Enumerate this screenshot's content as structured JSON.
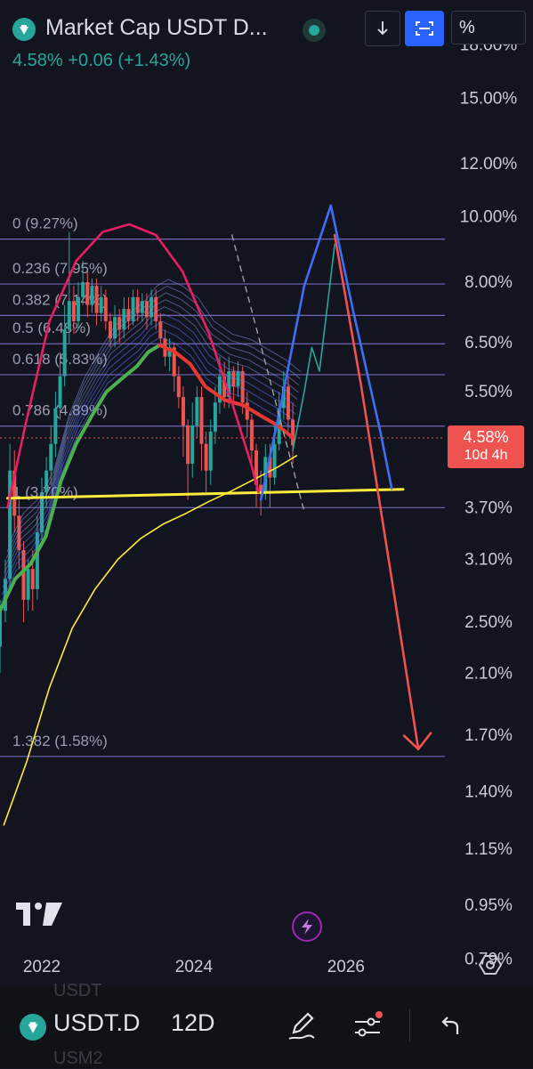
{
  "header": {
    "title": "Market Cap USDT D...",
    "change_text": "4.58%  +0.06 (+1.43%)",
    "scale_mode_label": "%"
  },
  "price_tag": {
    "value": "4.58%",
    "countdown": "10d 4h"
  },
  "chart_data": {
    "type": "line",
    "title": "Market Cap USDT D...",
    "y_scale": "log",
    "ylim": [
      0.72,
      21
    ],
    "xlim": [
      2021.45,
      2027.3
    ],
    "y_ticks": [
      "18.00%",
      "15.00%",
      "12.00%",
      "10.00%",
      "8.00%",
      "6.50%",
      "5.50%",
      "3.70%",
      "3.10%",
      "2.50%",
      "2.10%",
      "1.70%",
      "1.40%",
      "1.15%",
      "0.95%",
      "0.79%"
    ],
    "x_ticks": [
      {
        "label": "2022",
        "x": 2022.0
      },
      {
        "label": "2024",
        "x": 2024.0
      },
      {
        "label": "2026",
        "x": 2026.0
      }
    ],
    "last_price": 4.58,
    "fib_levels": [
      {
        "label": "0 (9.27%)",
        "value": 9.27
      },
      {
        "label": "0.236 (7.95%)",
        "value": 7.95
      },
      {
        "label": "0.382 (7.14%)",
        "value": 7.14
      },
      {
        "label": "0.5 (6.48%)",
        "value": 6.48
      },
      {
        "label": "0.618 (5.83%)",
        "value": 5.83
      },
      {
        "label": "0.786 (4.89%)",
        "value": 4.89
      },
      {
        "label": "1 (3.70%)",
        "value": 3.7
      },
      {
        "label": "1.382 (1.58%)",
        "value": 1.58
      }
    ],
    "series": [
      {
        "color": "#ffeb3b",
        "style": "thin",
        "points": [
          [
            2021.5,
            1.25
          ],
          [
            2021.8,
            1.55
          ],
          [
            2022.1,
            2.0
          ],
          [
            2022.4,
            2.45
          ],
          [
            2022.7,
            2.8
          ],
          [
            2023.0,
            3.1
          ],
          [
            2023.3,
            3.33
          ],
          [
            2023.6,
            3.5
          ],
          [
            2023.9,
            3.63
          ],
          [
            2024.2,
            3.78
          ],
          [
            2024.5,
            3.92
          ],
          [
            2024.8,
            4.08
          ],
          [
            2025.1,
            4.25
          ],
          [
            2025.35,
            4.42
          ]
        ]
      },
      {
        "color": "#4caf50",
        "style": "thick",
        "points": [
          [
            2021.45,
            2.6
          ],
          [
            2021.65,
            2.9
          ],
          [
            2021.85,
            3.05
          ],
          [
            2022.05,
            3.35
          ],
          [
            2022.25,
            4.05
          ],
          [
            2022.45,
            4.6
          ],
          [
            2022.65,
            5.05
          ],
          [
            2022.85,
            5.5
          ],
          [
            2023.05,
            5.75
          ],
          [
            2023.25,
            6.0
          ],
          [
            2023.4,
            6.3
          ],
          [
            2023.55,
            6.45
          ]
        ]
      },
      {
        "color": "#e53935",
        "style": "thick",
        "points": [
          [
            2023.55,
            6.45
          ],
          [
            2023.75,
            6.3
          ],
          [
            2023.95,
            6.05
          ],
          [
            2024.15,
            5.6
          ],
          [
            2024.4,
            5.35
          ],
          [
            2024.65,
            5.25
          ],
          [
            2024.9,
            5.05
          ],
          [
            2025.1,
            4.9
          ],
          [
            2025.3,
            4.7
          ]
        ]
      },
      {
        "color": "#26a69a",
        "style": "thin",
        "points": [
          [
            2025.3,
            4.5
          ],
          [
            2025.45,
            5.5
          ],
          [
            2025.55,
            6.4
          ],
          [
            2025.65,
            5.9
          ],
          [
            2025.75,
            7.3
          ],
          [
            2025.85,
            9.1
          ]
        ]
      }
    ],
    "candles": [
      [
        2021.45,
        2.3,
        2.6,
        2.1,
        2.7
      ],
      [
        2021.52,
        2.6,
        2.9,
        2.5,
        3.1
      ],
      [
        2021.58,
        2.9,
        4.2,
        2.8,
        4.6
      ],
      [
        2021.64,
        4.2,
        3.6,
        3.4,
        4.5
      ],
      [
        2021.7,
        3.6,
        3.2,
        3.0,
        3.8
      ],
      [
        2021.76,
        3.2,
        2.7,
        2.5,
        3.3
      ],
      [
        2021.82,
        2.7,
        3.0,
        2.6,
        3.1
      ],
      [
        2021.88,
        3.0,
        2.8,
        2.6,
        3.2
      ],
      [
        2021.94,
        2.8,
        3.4,
        2.7,
        3.6
      ],
      [
        2022.0,
        3.4,
        3.9,
        3.3,
        4.1
      ],
      [
        2022.06,
        3.9,
        4.2,
        3.7,
        4.4
      ],
      [
        2022.12,
        4.2,
        4.6,
        4.0,
        4.9
      ],
      [
        2022.18,
        4.6,
        5.2,
        4.4,
        5.5
      ],
      [
        2022.24,
        5.2,
        5.8,
        5.0,
        6.3
      ],
      [
        2022.3,
        5.8,
        6.8,
        5.6,
        7.4
      ],
      [
        2022.36,
        6.8,
        7.5,
        6.5,
        9.5
      ],
      [
        2022.42,
        7.5,
        7.0,
        6.7,
        7.9
      ],
      [
        2022.48,
        7.0,
        7.6,
        6.8,
        8.0
      ],
      [
        2022.54,
        7.6,
        8.0,
        7.4,
        8.6
      ],
      [
        2022.6,
        8.0,
        7.4,
        7.1,
        8.3
      ],
      [
        2022.66,
        7.4,
        7.9,
        7.2,
        8.1
      ],
      [
        2022.72,
        7.9,
        7.2,
        6.9,
        8.1
      ],
      [
        2022.78,
        7.2,
        7.6,
        7.0,
        7.9
      ],
      [
        2022.84,
        7.6,
        7.0,
        6.8,
        7.8
      ],
      [
        2022.9,
        7.0,
        6.6,
        6.4,
        7.2
      ],
      [
        2022.96,
        6.6,
        7.1,
        6.4,
        7.4
      ],
      [
        2023.02,
        7.1,
        6.8,
        6.5,
        7.3
      ],
      [
        2023.08,
        6.8,
        7.3,
        6.6,
        7.6
      ],
      [
        2023.14,
        7.3,
        7.0,
        6.8,
        7.6
      ],
      [
        2023.2,
        7.0,
        7.6,
        6.9,
        7.8
      ],
      [
        2023.26,
        7.6,
        7.2,
        7.0,
        7.8
      ],
      [
        2023.32,
        7.2,
        7.5,
        7.0,
        7.7
      ],
      [
        2023.38,
        7.5,
        7.1,
        6.8,
        7.7
      ],
      [
        2023.44,
        7.1,
        7.6,
        6.9,
        7.8
      ],
      [
        2023.5,
        7.6,
        7.0,
        6.8,
        7.8
      ],
      [
        2023.56,
        7.0,
        6.6,
        6.4,
        7.2
      ],
      [
        2023.62,
        6.6,
        6.2,
        6.0,
        6.8
      ],
      [
        2023.68,
        6.2,
        6.4,
        5.9,
        6.6
      ],
      [
        2023.74,
        6.4,
        5.8,
        5.5,
        6.5
      ],
      [
        2023.8,
        5.8,
        5.4,
        5.2,
        6.0
      ],
      [
        2023.86,
        5.4,
        4.9,
        4.4,
        5.6
      ],
      [
        2023.92,
        4.9,
        4.3,
        3.8,
        5.0
      ],
      [
        2023.98,
        4.3,
        4.9,
        4.1,
        5.3
      ],
      [
        2024.04,
        4.9,
        5.4,
        4.7,
        5.6
      ],
      [
        2024.1,
        5.4,
        4.6,
        4.2,
        5.6
      ],
      [
        2024.16,
        4.6,
        4.2,
        3.9,
        4.8
      ],
      [
        2024.22,
        4.2,
        4.8,
        4.0,
        5.0
      ],
      [
        2024.28,
        4.8,
        5.3,
        4.6,
        5.6
      ],
      [
        2024.34,
        5.3,
        5.8,
        5.1,
        6.2
      ],
      [
        2024.4,
        5.8,
        5.4,
        5.2,
        6.1
      ],
      [
        2024.46,
        5.4,
        5.9,
        5.2,
        6.2
      ],
      [
        2024.52,
        5.9,
        5.6,
        5.3,
        6.0
      ],
      [
        2024.58,
        5.6,
        5.9,
        5.4,
        6.1
      ],
      [
        2024.64,
        5.9,
        5.3,
        5.1,
        6.0
      ],
      [
        2024.7,
        5.3,
        5.0,
        4.7,
        5.5
      ],
      [
        2024.76,
        5.0,
        4.5,
        4.3,
        5.1
      ],
      [
        2024.82,
        4.5,
        4.0,
        3.7,
        4.6
      ],
      [
        2024.88,
        4.0,
        3.9,
        3.6,
        4.2
      ],
      [
        2024.94,
        3.9,
        4.4,
        3.8,
        4.6
      ],
      [
        2025.0,
        4.4,
        4.1,
        3.7,
        4.6
      ],
      [
        2025.06,
        4.1,
        4.6,
        4.0,
        4.9
      ],
      [
        2025.12,
        4.6,
        5.2,
        4.5,
        5.5
      ],
      [
        2025.18,
        5.2,
        5.6,
        5.0,
        5.9
      ],
      [
        2025.24,
        5.6,
        5.0,
        4.8,
        5.8
      ],
      [
        2025.3,
        5.0,
        4.58,
        4.3,
        5.3
      ]
    ],
    "drawings": [
      {
        "type": "yellow-support-line",
        "color": "#ffeb3b",
        "points": [
          [
            2021.55,
            3.82
          ],
          [
            2026.75,
            3.94
          ]
        ]
      },
      {
        "type": "pink-arc",
        "color": "#e91e63",
        "points": [
          [
            2021.55,
            3.7
          ],
          [
            2021.8,
            5.0
          ],
          [
            2022.1,
            7.0
          ],
          [
            2022.45,
            8.6
          ],
          [
            2022.8,
            9.5
          ],
          [
            2023.15,
            9.75
          ],
          [
            2023.5,
            9.4
          ],
          [
            2023.85,
            8.3
          ],
          [
            2024.2,
            6.7
          ],
          [
            2024.5,
            5.3
          ],
          [
            2024.75,
            4.3
          ],
          [
            2024.85,
            3.9
          ]
        ]
      },
      {
        "type": "blue-projection",
        "color": "#3f6ff0",
        "points": [
          [
            2024.88,
            3.8
          ],
          [
            2025.15,
            5.3
          ],
          [
            2025.45,
            7.9
          ],
          [
            2025.8,
            10.4
          ],
          [
            2026.1,
            7.2
          ],
          [
            2026.45,
            4.8
          ],
          [
            2026.6,
            3.95
          ]
        ]
      },
      {
        "type": "red-projection",
        "color": "#ef5350",
        "points": [
          [
            2025.85,
            9.4
          ],
          [
            2026.2,
            5.6
          ],
          [
            2026.6,
            2.9
          ],
          [
            2026.95,
            1.62
          ]
        ]
      },
      {
        "type": "dashed-trend",
        "color": "#9e9e9e",
        "points": [
          [
            2024.5,
            9.4
          ],
          [
            2025.45,
            3.65
          ]
        ]
      }
    ]
  },
  "bottom_bar": {
    "symbol": "USDT.D",
    "interval": "12D",
    "ghost_above": "USDT",
    "ghost_below": "USM2"
  }
}
